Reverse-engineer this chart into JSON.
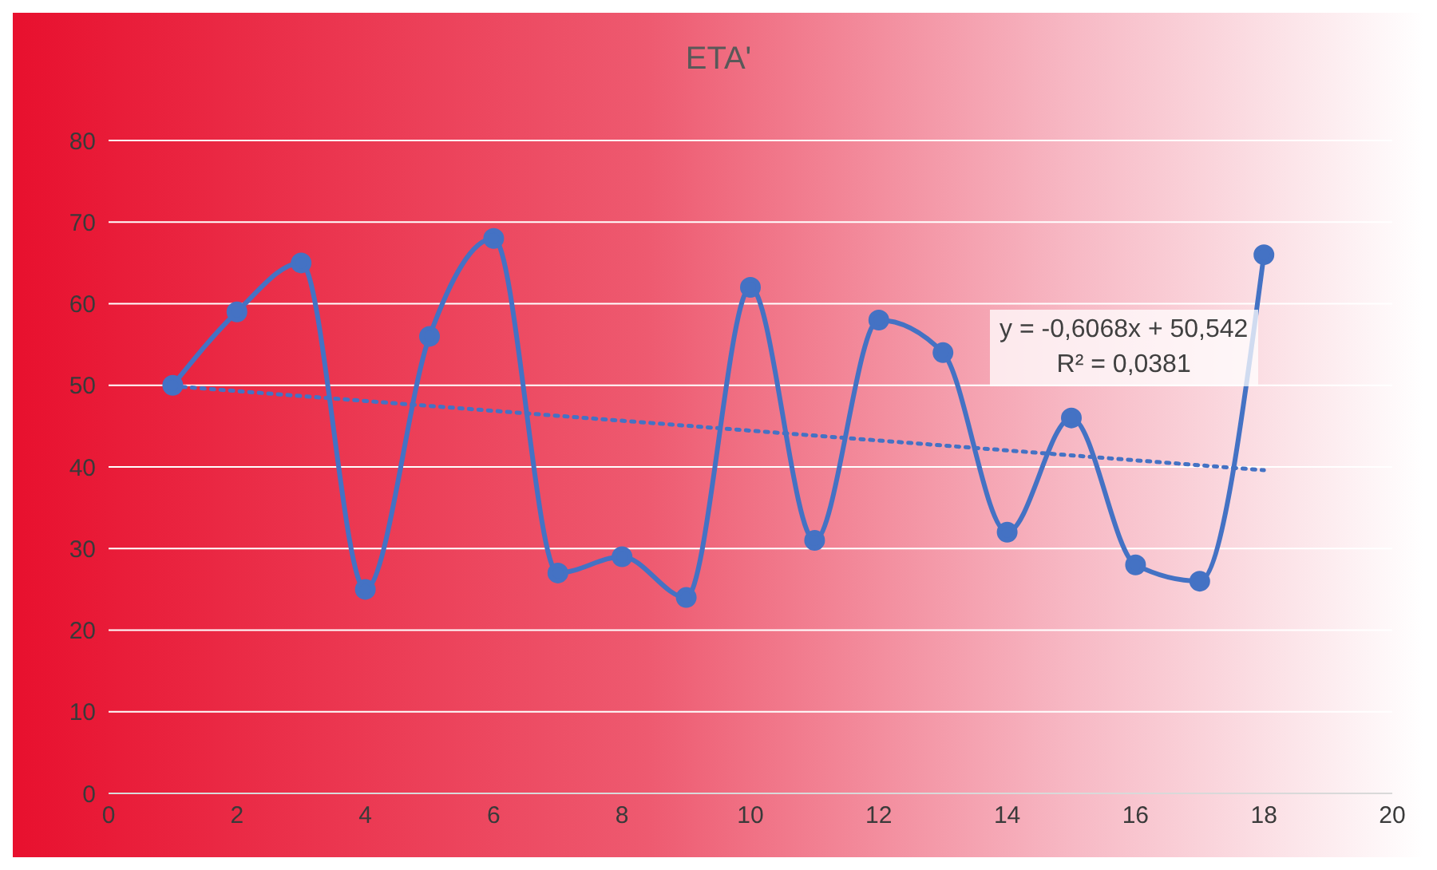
{
  "chart_data": {
    "type": "line",
    "title": "ETA'",
    "x": [
      1,
      2,
      3,
      4,
      5,
      6,
      7,
      8,
      9,
      10,
      11,
      12,
      13,
      14,
      15,
      16,
      17,
      18
    ],
    "series": [
      {
        "color": "#4472c4",
        "values": [
          50,
          59,
          65,
          25,
          56,
          68,
          27,
          29,
          24,
          62,
          31,
          58,
          54,
          32,
          46,
          28,
          26,
          66
        ],
        "marker": "circle",
        "line_style": "solid"
      },
      {
        "type": "line",
        "color": "#4472c4",
        "x": [
          1,
          18
        ],
        "values": [
          49.9,
          39.6
        ],
        "marker": "none",
        "line_style": "dotted"
      }
    ],
    "xlim": [
      0,
      20
    ],
    "xticks": [
      0,
      2,
      4,
      6,
      8,
      10,
      12,
      14,
      16,
      18,
      20
    ],
    "ylim": [
      0,
      80
    ],
    "yticks": [
      0,
      10,
      20,
      30,
      40,
      50,
      60,
      70,
      80
    ],
    "grid": "y",
    "annotations": [
      "y = -0,6068x + 50,542",
      "R² = 0,0381"
    ]
  }
}
